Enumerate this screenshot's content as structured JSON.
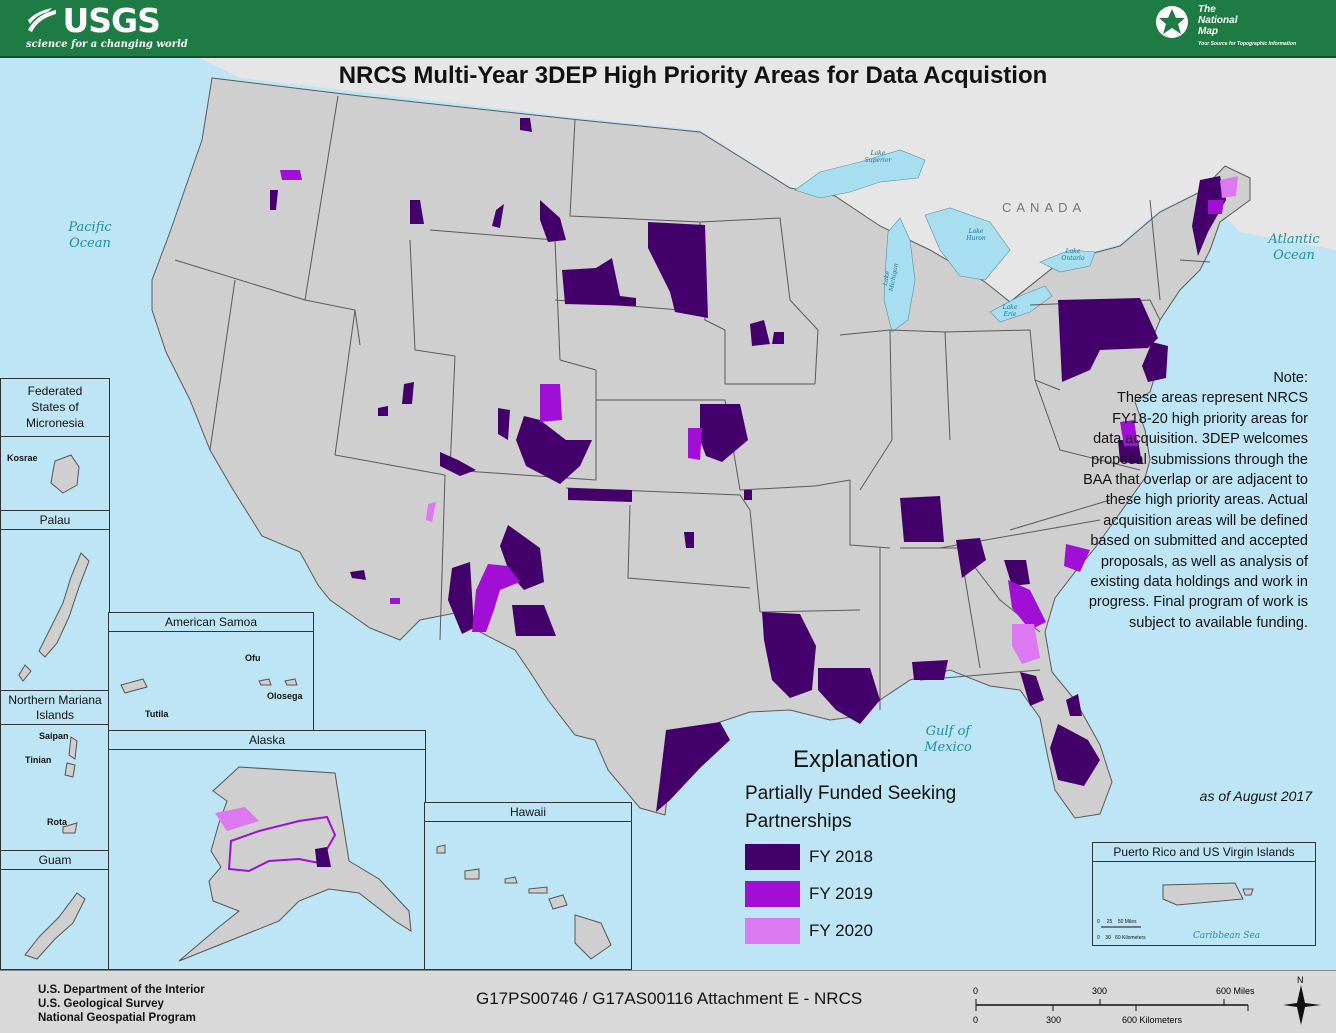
{
  "header": {
    "usgs_word": "USGS",
    "usgs_tagline": "science for a changing world",
    "tnm_line1": "The",
    "tnm_line2": "National",
    "tnm_line3": "Map",
    "tnm_tagline": "Your Source for Topographic Information"
  },
  "title": "NRCS Multi-Year 3DEP High Priority Areas for Data Acquistion",
  "labels": {
    "pacific_1": "Pacific",
    "pacific_2": "Ocean",
    "atlantic_1": "Atlantic",
    "atlantic_2": "Ocean",
    "gulf_1": "Gulf of",
    "gulf_2": "Mexico",
    "canada": "CANADA",
    "caribbean": "Caribbean Sea",
    "lake_superior_1": "Lake",
    "lake_superior_2": "Superior",
    "lake_michigan": "Lake Michigan",
    "lake_huron_1": "Lake",
    "lake_huron_2": "Huron",
    "lake_ontario_1": "Lake",
    "lake_ontario_2": "Ontario",
    "lake_erie_1": "Lake",
    "lake_erie_2": "Erie"
  },
  "insets": {
    "micronesia": {
      "title_1": "Federated",
      "title_2": "States of",
      "title_3": "Micronesia",
      "island": "Kosrae"
    },
    "palau": {
      "title": "Palau"
    },
    "nmi": {
      "title_1": "Northern Mariana",
      "title_2": "Islands",
      "islands": [
        "Saipan",
        "Tinian",
        "Rota"
      ]
    },
    "guam": {
      "title": "Guam"
    },
    "samoa": {
      "title": "American Samoa",
      "islands": [
        "Ofu",
        "Olosega",
        "Tutila"
      ]
    },
    "alaska": {
      "title": "Alaska"
    },
    "hawaii": {
      "title": "Hawaii"
    },
    "puerto_rico": {
      "title": "Puerto Rico and US Virgin Islands",
      "scale_miles": [
        "0",
        "25",
        "50 Miles"
      ],
      "scale_km": [
        "0",
        "30",
        "60 Kilometers"
      ]
    }
  },
  "note": {
    "heading": "Note:",
    "body": "These areas represent NRCS FY18-20 high priority areas for data acquisition. 3DEP welcomes proposal submissions through the BAA that overlap or are adjacent to these high priority areas.  Actual acquisition areas will be defined based on submitted and accepted proposals, as well as analysis of existing data holdings and work in progress. Final program of work is subject to available funding.",
    "as_of": "as of August 2017"
  },
  "legend": {
    "title": "Explanation",
    "subtitle_1": "Partially Funded Seeking",
    "subtitle_2": "Partnerships",
    "items": [
      {
        "label": "FY 2018",
        "color": "#44006a"
      },
      {
        "label": "FY 2019",
        "color": "#a10fd6"
      },
      {
        "label": "FY 2020",
        "color": "#dc78f0"
      }
    ]
  },
  "colors": {
    "land": "#cfcfcf",
    "water": "#bde5f6",
    "lake": "#a7dff1",
    "state_line": "#5a5a5a",
    "canada_land": "#e6e6e6",
    "header_green": "#1e7b43"
  },
  "footer": {
    "dept_1": "U.S. Department of the Interior",
    "dept_2": "U.S. Geological Survey",
    "dept_3": "National Geospatial Program",
    "grant": "G17PS00746 / G17AS00116 Attachment E - NRCS",
    "scale_miles": [
      "0",
      "300",
      "600 Miles"
    ],
    "scale_km": [
      "0",
      "300",
      "600 Kilometers"
    ],
    "north": "N"
  }
}
